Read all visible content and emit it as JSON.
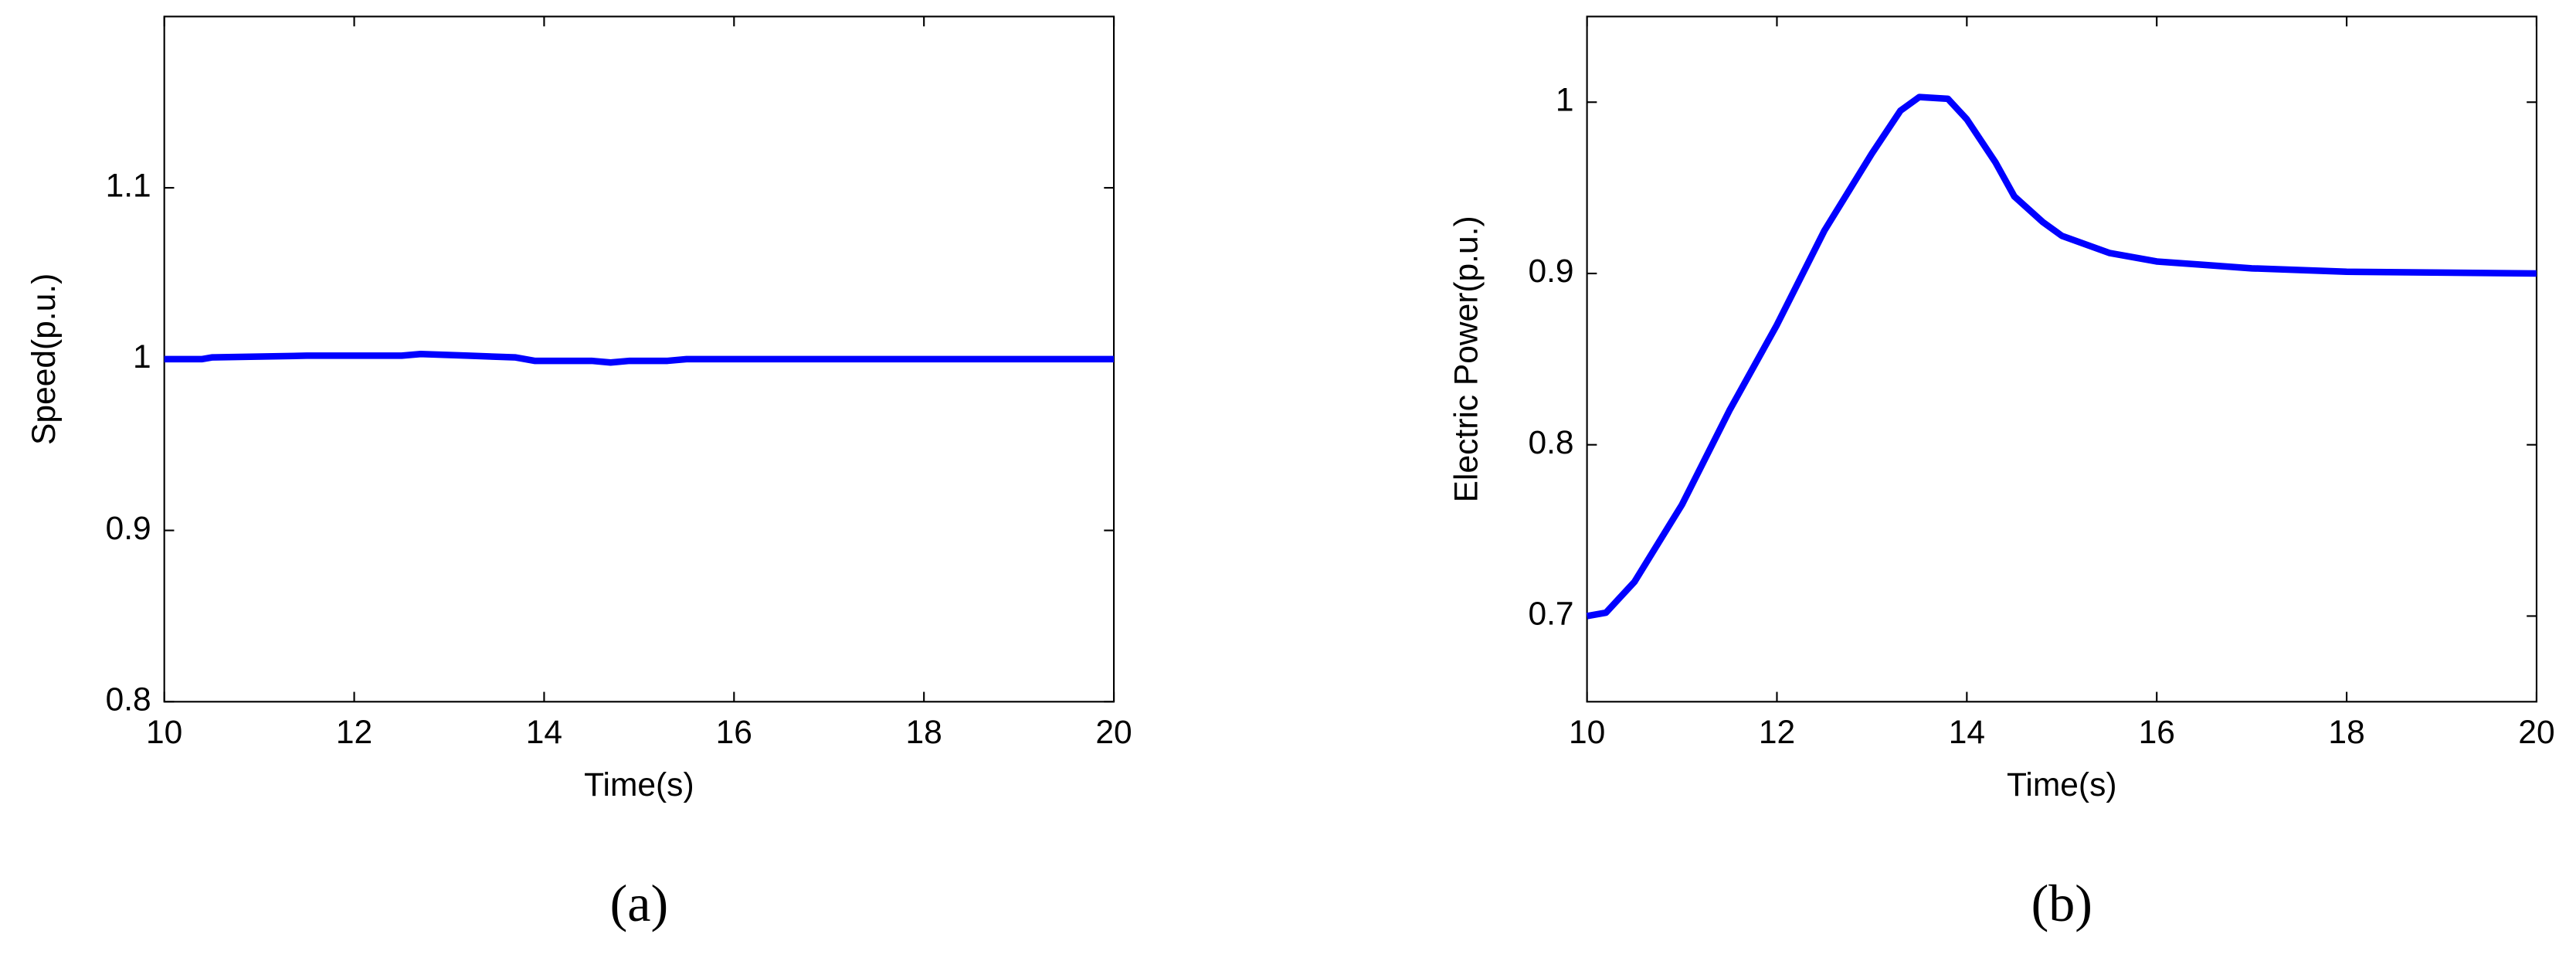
{
  "chart_data": [
    {
      "type": "line",
      "label": "(a)",
      "xlabel": "Time(s)",
      "ylabel": "Speed(p.u.)",
      "x": [
        10,
        10.4,
        10.5,
        11.5,
        12.5,
        12.7,
        13.2,
        13.7,
        13.9,
        14.5,
        14.7,
        14.9,
        15.3,
        15.5,
        20
      ],
      "values": [
        1,
        1,
        1.001,
        1.002,
        1.002,
        1.003,
        1.002,
        1.001,
        0.999,
        0.999,
        0.998,
        0.999,
        0.999,
        1,
        1
      ],
      "color": "#0000ff",
      "xlim": [
        10,
        20
      ],
      "xticks": [
        10,
        12,
        14,
        16,
        18,
        20
      ],
      "ylim": [
        0.8,
        1.2
      ],
      "yticks": [
        0.8,
        0.9,
        1,
        1.1
      ],
      "grid": false
    },
    {
      "type": "line",
      "label": "(b)",
      "xlabel": "Time(s)",
      "ylabel": "Electric Power(p.u.)",
      "x": [
        10,
        10.2,
        10.5,
        11,
        11.5,
        12,
        12.5,
        13,
        13.3,
        13.5,
        13.8,
        14,
        14.3,
        14.5,
        14.8,
        15,
        15.5,
        16,
        16.5,
        17,
        18,
        20
      ],
      "values": [
        0.7,
        0.702,
        0.72,
        0.765,
        0.82,
        0.87,
        0.925,
        0.97,
        0.995,
        1.003,
        1.002,
        0.99,
        0.965,
        0.945,
        0.93,
        0.922,
        0.912,
        0.907,
        0.905,
        0.903,
        0.901,
        0.9
      ],
      "color": "#0000ff",
      "xlim": [
        10,
        20
      ],
      "xticks": [
        10,
        12,
        14,
        16,
        18,
        20
      ],
      "ylim": [
        0.65,
        1.05
      ],
      "yticks": [
        0.7,
        0.8,
        0.9,
        1
      ],
      "grid": false
    }
  ]
}
